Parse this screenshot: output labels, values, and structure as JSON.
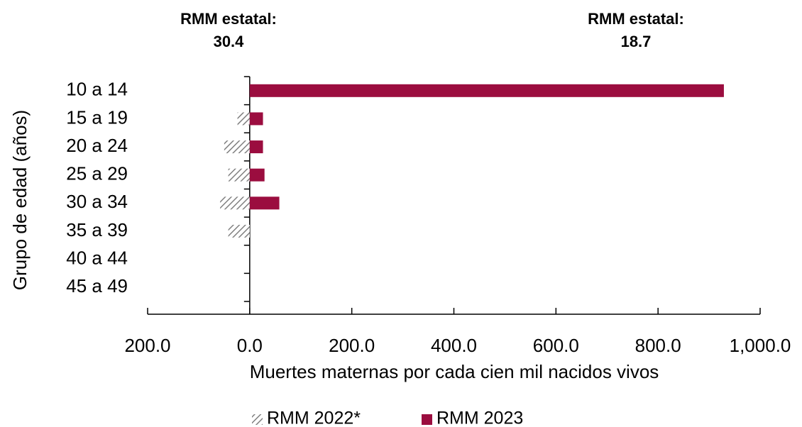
{
  "chart_data": {
    "type": "bar",
    "orientation": "horizontal",
    "categories": [
      "10 a 14",
      "15 a 19",
      "20 a 24",
      "25 a 29",
      "30 a 34",
      "35 a 39",
      "40 a 44",
      "45 a 49"
    ],
    "series": [
      {
        "name": "RMM 2022*",
        "color": "#7f7f7f",
        "pattern": "hatch",
        "values": [
          0,
          -24,
          -50,
          -42,
          -58,
          -42,
          0,
          0
        ]
      },
      {
        "name": "RMM 2023",
        "color": "#9b0d3f",
        "values": [
          929,
          26,
          26,
          29,
          58,
          0,
          0,
          0
        ]
      }
    ],
    "xlim": [
      -200,
      1000
    ],
    "xticks": [
      {
        "value": -200,
        "label": "200.0"
      },
      {
        "value": 0,
        "label": "0.0"
      },
      {
        "value": 200,
        "label": "200.0"
      },
      {
        "value": 400,
        "label": "400.0"
      },
      {
        "value": 600,
        "label": "600.0"
      },
      {
        "value": 800,
        "label": "800.0"
      },
      {
        "value": 1000,
        "label": "1,000.0"
      }
    ],
    "xlabel": "Muertes maternas por cada cien mil nacidos vivos",
    "ylabel": "Grupo de edad (años)",
    "annotations": [
      {
        "label": "RMM estatal:",
        "value": 30.4,
        "color": "#595959"
      },
      {
        "label": "RMM estatal:",
        "value": 18.7,
        "color": "#9b0d3f"
      }
    ],
    "legend": "bottom"
  }
}
